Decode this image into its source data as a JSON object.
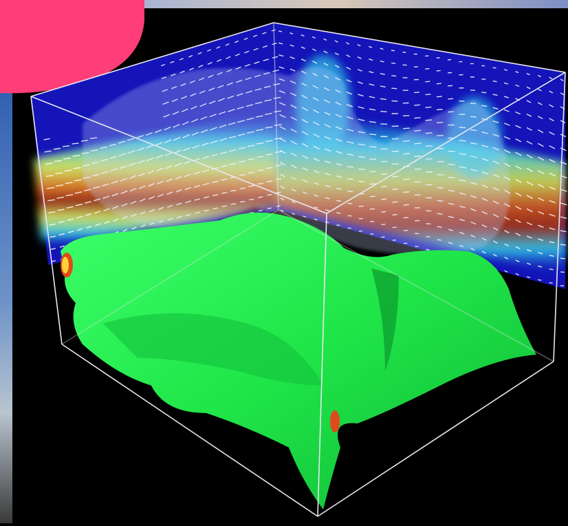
{
  "scene": {
    "background_color": "#000000",
    "top_band_color": "#7d8fc6",
    "left_strip_colors": [
      "#2f5fb0",
      "#6f93c9",
      "#b9c4cf"
    ],
    "pink_blob_color": "#ff3d78",
    "wall_base_color": "#1414b8",
    "flow_band_colors": [
      "#2ec9e6",
      "#d6e85a",
      "#e07a20",
      "#9a2a10"
    ],
    "isosurface_color": "#22ee4a",
    "isosurface_edge_color": "#e04a1a",
    "box_edge_color": "#e8e8f0",
    "arrow_color": "#ffffff"
  }
}
